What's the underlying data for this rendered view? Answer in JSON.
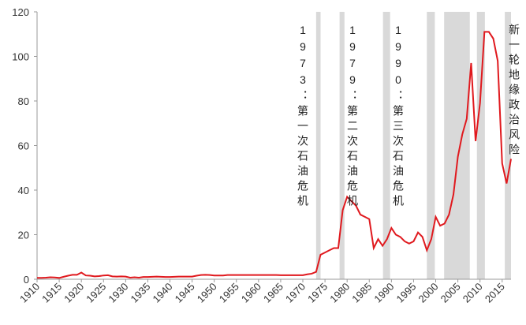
{
  "chart_data": {
    "type": "line",
    "x": [
      1910,
      1911,
      1912,
      1913,
      1914,
      1915,
      1916,
      1917,
      1918,
      1919,
      1920,
      1921,
      1922,
      1923,
      1924,
      1925,
      1926,
      1927,
      1928,
      1929,
      1930,
      1931,
      1932,
      1933,
      1934,
      1935,
      1936,
      1937,
      1938,
      1939,
      1940,
      1941,
      1942,
      1943,
      1944,
      1945,
      1946,
      1947,
      1948,
      1949,
      1950,
      1951,
      1952,
      1953,
      1954,
      1955,
      1956,
      1957,
      1958,
      1959,
      1960,
      1961,
      1962,
      1963,
      1964,
      1965,
      1966,
      1967,
      1968,
      1969,
      1970,
      1971,
      1972,
      1973,
      1974,
      1975,
      1976,
      1977,
      1978,
      1979,
      1980,
      1981,
      1982,
      1983,
      1984,
      1985,
      1986,
      1987,
      1988,
      1989,
      1990,
      1991,
      1992,
      1993,
      1994,
      1995,
      1996,
      1997,
      1998,
      1999,
      2000,
      2001,
      2002,
      2003,
      2004,
      2005,
      2006,
      2007,
      2008,
      2009,
      2010,
      2011,
      2012,
      2013,
      2014,
      2015,
      2016,
      2017
    ],
    "series": [
      {
        "color": "#e0191e",
        "values": [
          0.6,
          0.6,
          0.7,
          0.9,
          0.8,
          0.6,
          1.1,
          1.6,
          2,
          2,
          3,
          1.7,
          1.6,
          1.3,
          1.4,
          1.7,
          1.8,
          1.3,
          1.2,
          1.3,
          1.2,
          0.7,
          0.9,
          0.7,
          1,
          1,
          1.1,
          1.2,
          1.1,
          1,
          1,
          1.1,
          1.2,
          1.2,
          1.2,
          1.2,
          1.6,
          1.9,
          2,
          1.9,
          1.7,
          1.7,
          1.7,
          1.9,
          1.9,
          1.9,
          1.9,
          1.9,
          1.9,
          1.9,
          1.9,
          1.9,
          1.9,
          1.9,
          1.9,
          1.8,
          1.8,
          1.8,
          1.8,
          1.8,
          1.8,
          2.2,
          2.5,
          3.3,
          11,
          12,
          13,
          14,
          14,
          31,
          37,
          35,
          33,
          29,
          28,
          27,
          14,
          18,
          15,
          18,
          23,
          20,
          19,
          17,
          16,
          17,
          21,
          19,
          13,
          18,
          28,
          24,
          25,
          29,
          38,
          55,
          65,
          72,
          97,
          62,
          79,
          111,
          111,
          108,
          98,
          52,
          43,
          54
        ]
      }
    ],
    "shaded_periods": [
      [
        1973,
        1974
      ],
      [
        1978.3,
        1979.4
      ],
      [
        1988.1,
        1989.7
      ],
      [
        1998,
        1999.8
      ],
      [
        2001.9,
        2007.7
      ],
      [
        2009.3,
        2011.1
      ],
      [
        2015.6,
        2017
      ]
    ],
    "annotations": [
      "1973：第一次石油危机",
      "1979：第二次石油危机",
      "1990：第三次石油危机",
      "新一轮地缘政治风险"
    ],
    "xlim": [
      1910,
      2017
    ],
    "xticks": [
      1910,
      1915,
      1920,
      1925,
      1930,
      1935,
      1940,
      1945,
      1950,
      1955,
      1960,
      1965,
      1970,
      1975,
      1980,
      1985,
      1990,
      1995,
      2000,
      2005,
      2010,
      2015
    ],
    "ylim": [
      0,
      120
    ],
    "yticks": [
      0,
      20,
      40,
      60,
      80,
      100,
      120
    ],
    "grid": false
  }
}
